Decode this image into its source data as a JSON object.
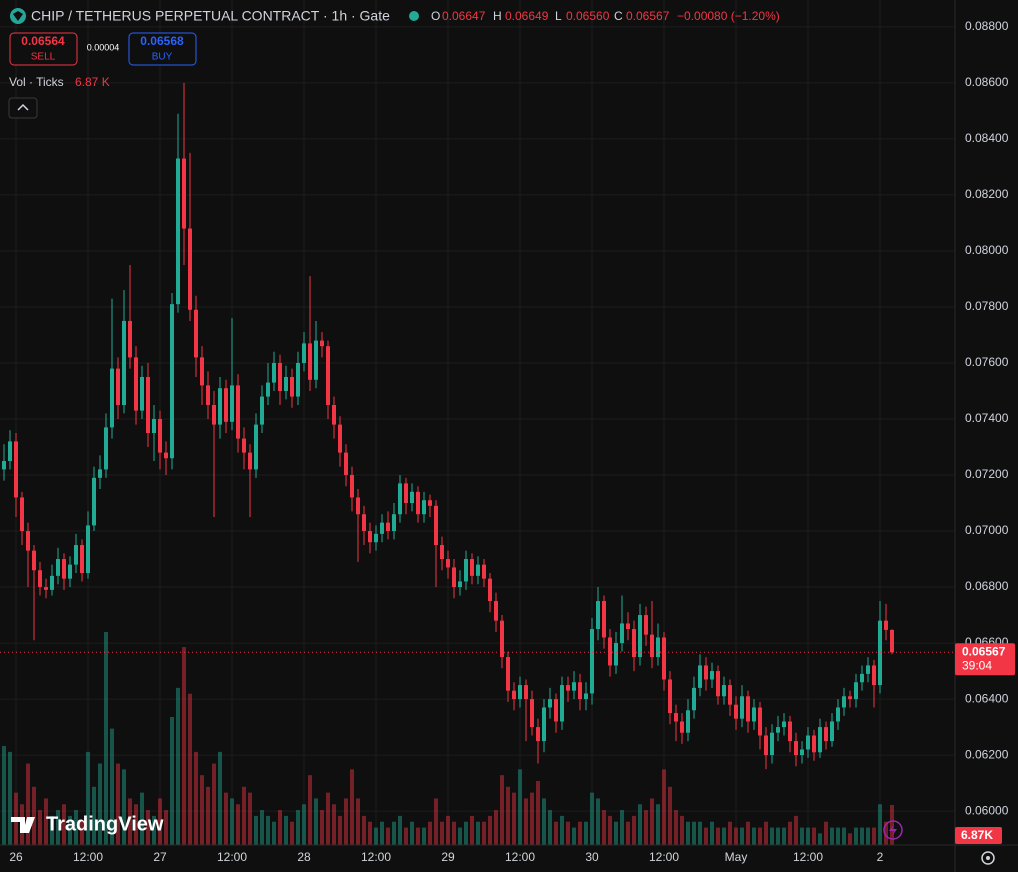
{
  "chart_data": {
    "type": "candlestick",
    "title": "CHIP / TETHERUS PERPETUAL CONTRACT · 1h · Gate",
    "legend": {
      "open_key": "O",
      "open": "0.06647",
      "high_key": "H",
      "high": "0.06649",
      "low_key": "L",
      "low": "0.06560",
      "close_key": "C",
      "close": "0.06567",
      "change": "−0.00080 (−1.20%)"
    },
    "trade": {
      "sell_price": "0.06564",
      "sell": "SELL",
      "spread": "0.00004",
      "buy_price": "0.06568",
      "buy": "BUY"
    },
    "last_price": {
      "value": 0.06567,
      "label": "0.06567",
      "countdown": "39:04"
    },
    "brand": "TradingView",
    "up_color": "#22ab94",
    "down_color": "#f23645",
    "grid": true,
    "categories": [
      null,
      null,
      "26",
      null,
      null,
      null,
      null,
      null,
      null,
      null,
      null,
      null,
      null,
      null,
      "12:00",
      null,
      null,
      null,
      null,
      null,
      null,
      null,
      null,
      null,
      null,
      null,
      "27",
      null,
      null,
      null,
      null,
      null,
      null,
      null,
      null,
      null,
      null,
      null,
      "12:00",
      null,
      null,
      null,
      null,
      null,
      null,
      null,
      null,
      null,
      null,
      null,
      "28",
      null,
      null,
      null,
      null,
      null,
      null,
      null,
      null,
      null,
      null,
      null,
      "12:00",
      null,
      null,
      null,
      null,
      null,
      null,
      null,
      null,
      null,
      null,
      null,
      "29",
      null,
      null,
      null,
      null,
      null,
      null,
      null,
      null,
      null,
      null,
      null,
      "12:00",
      null,
      null,
      null,
      null,
      null,
      null,
      null,
      null,
      null,
      null,
      null,
      "30",
      null,
      null,
      null,
      null,
      null,
      null,
      null,
      null,
      null,
      null,
      null,
      "12:00",
      null,
      null,
      null,
      null,
      null,
      null,
      null,
      null,
      null,
      null,
      null,
      "May",
      null,
      null,
      null,
      null,
      null,
      null,
      null,
      null,
      null,
      null,
      null,
      "12:00",
      null,
      null,
      null,
      null,
      null,
      null,
      null,
      null,
      null,
      null,
      null,
      "2",
      null,
      null
    ],
    "open": [
      0.0722,
      0.0725,
      0.0732,
      0.0712,
      0.07,
      0.0693,
      0.0686,
      0.068,
      0.0679,
      0.0684,
      0.069,
      0.0683,
      0.0688,
      0.0695,
      0.0685,
      0.0702,
      0.0719,
      0.0722,
      0.0737,
      0.0758,
      0.0745,
      0.0775,
      0.0762,
      0.0743,
      0.0755,
      0.0735,
      0.074,
      0.0728,
      0.0726,
      0.0781,
      0.0833,
      0.0808,
      0.0779,
      0.0762,
      0.0752,
      0.0745,
      0.0738,
      0.0751,
      0.0739,
      0.0752,
      0.0733,
      0.0728,
      0.0722,
      0.0738,
      0.0748,
      0.0753,
      0.076,
      0.075,
      0.0755,
      0.0748,
      0.076,
      0.0767,
      0.0754,
      0.0768,
      0.0766,
      0.0745,
      0.0738,
      0.0728,
      0.072,
      0.0712,
      0.0706,
      0.07,
      0.0696,
      0.0699,
      0.0703,
      0.07,
      0.0706,
      0.0717,
      0.071,
      0.0714,
      0.0706,
      0.0711,
      0.0709,
      0.0695,
      0.069,
      0.0687,
      0.068,
      0.0682,
      0.069,
      0.0684,
      0.0688,
      0.0683,
      0.0675,
      0.0668,
      0.0655,
      0.0643,
      0.064,
      0.0645,
      0.064,
      0.063,
      0.0625,
      0.0637,
      0.064,
      0.0632,
      0.0645,
      0.0643,
      0.0646,
      0.064,
      0.0642,
      0.0665,
      0.0675,
      0.0662,
      0.0652,
      0.066,
      0.0667,
      0.0665,
      0.0655,
      0.067,
      0.0663,
      0.0655,
      0.0662,
      0.0647,
      0.0635,
      0.0632,
      0.0628,
      0.0636,
      0.0644,
      0.0652,
      0.0647,
      0.065,
      0.0641,
      0.0645,
      0.0638,
      0.0633,
      0.0641,
      0.0632,
      0.0637,
      0.0627,
      0.062,
      0.0628,
      0.063,
      0.0632,
      0.0625,
      0.062,
      0.0622,
      0.0627,
      0.0621,
      0.063,
      0.0625,
      0.0632,
      0.0637,
      0.0641,
      0.064,
      0.0646,
      0.0649,
      0.0652,
      0.0645,
      0.0668,
      0.06647
    ],
    "high": [
      0.0731,
      0.0736,
      0.0735,
      0.0714,
      0.0703,
      0.0695,
      0.0689,
      0.0683,
      0.0688,
      0.0694,
      0.0692,
      0.0691,
      0.0699,
      0.0697,
      0.0707,
      0.0723,
      0.0727,
      0.0742,
      0.0783,
      0.0762,
      0.0786,
      0.0795,
      0.0766,
      0.0759,
      0.076,
      0.0745,
      0.0743,
      0.0732,
      0.0785,
      0.0849,
      0.086,
      0.0835,
      0.0784,
      0.0766,
      0.0757,
      0.075,
      0.0755,
      0.0754,
      0.0776,
      0.0756,
      0.0737,
      0.0731,
      0.0742,
      0.0752,
      0.076,
      0.0764,
      0.0763,
      0.0759,
      0.0758,
      0.0764,
      0.0771,
      0.0791,
      0.0775,
      0.0771,
      0.0768,
      0.0748,
      0.0741,
      0.0731,
      0.0723,
      0.0715,
      0.0709,
      0.0703,
      0.0702,
      0.0706,
      0.0707,
      0.071,
      0.072,
      0.0719,
      0.0717,
      0.0716,
      0.0714,
      0.0713,
      0.0711,
      0.0698,
      0.0693,
      0.069,
      0.0686,
      0.0693,
      0.0692,
      0.0691,
      0.069,
      0.0685,
      0.0678,
      0.067,
      0.0657,
      0.0646,
      0.0648,
      0.0647,
      0.0643,
      0.0633,
      0.064,
      0.0644,
      0.0642,
      0.0648,
      0.0648,
      0.065,
      0.0649,
      0.0646,
      0.0669,
      0.068,
      0.0677,
      0.0665,
      0.0664,
      0.0677,
      0.0671,
      0.0668,
      0.0674,
      0.0673,
      0.0675,
      0.0667,
      0.0664,
      0.065,
      0.0638,
      0.0635,
      0.064,
      0.0648,
      0.0656,
      0.0655,
      0.0653,
      0.0652,
      0.0648,
      0.0647,
      0.0641,
      0.0645,
      0.0643,
      0.064,
      0.0639,
      0.063,
      0.0631,
      0.0634,
      0.0635,
      0.0634,
      0.0628,
      0.0625,
      0.063,
      0.0629,
      0.0633,
      0.0632,
      0.0635,
      0.064,
      0.0644,
      0.0643,
      0.0649,
      0.0652,
      0.0655,
      0.0654,
      0.0675,
      0.0674,
      0.06649
    ],
    "low": [
      0.0718,
      0.0722,
      0.0705,
      0.0695,
      0.068,
      0.0661,
      0.0677,
      0.0676,
      0.0677,
      0.0681,
      0.0679,
      0.068,
      0.0685,
      0.0682,
      0.0683,
      0.07,
      0.0715,
      0.0719,
      0.0733,
      0.074,
      0.0742,
      0.0758,
      0.0738,
      0.074,
      0.073,
      0.0725,
      0.0722,
      0.072,
      0.0722,
      0.0778,
      0.0795,
      0.0775,
      0.0755,
      0.0745,
      0.074,
      0.0705,
      0.0733,
      0.0735,
      0.0736,
      0.0728,
      0.0722,
      0.0705,
      0.0719,
      0.0735,
      0.0745,
      0.075,
      0.0745,
      0.0747,
      0.0744,
      0.0745,
      0.0757,
      0.075,
      0.0751,
      0.0762,
      0.074,
      0.0733,
      0.0723,
      0.0716,
      0.0707,
      0.0689,
      0.0695,
      0.0692,
      0.0693,
      0.0696,
      0.0697,
      0.0697,
      0.0703,
      0.0706,
      0.0707,
      0.0703,
      0.0703,
      0.0705,
      0.068,
      0.0686,
      0.0683,
      0.0676,
      0.0677,
      0.0679,
      0.0681,
      0.0681,
      0.068,
      0.0671,
      0.0664,
      0.0651,
      0.0639,
      0.0636,
      0.0637,
      0.0625,
      0.0627,
      0.0617,
      0.0621,
      0.0633,
      0.0628,
      0.0629,
      0.0639,
      0.064,
      0.0636,
      0.0636,
      0.0638,
      0.0661,
      0.0658,
      0.0648,
      0.0649,
      0.0657,
      0.0661,
      0.065,
      0.0652,
      0.0659,
      0.0651,
      0.0652,
      0.0643,
      0.0631,
      0.0625,
      0.0624,
      0.0625,
      0.0633,
      0.0641,
      0.0643,
      0.0644,
      0.0638,
      0.0638,
      0.0634,
      0.0629,
      0.063,
      0.0628,
      0.0629,
      0.0622,
      0.0615,
      0.0617,
      0.0625,
      0.0627,
      0.0621,
      0.0616,
      0.0617,
      0.0619,
      0.0618,
      0.0619,
      0.0622,
      0.0623,
      0.0629,
      0.0634,
      0.0637,
      0.0637,
      0.0643,
      0.0646,
      0.0637,
      0.0642,
      0.0661,
      0.0656
    ],
    "close": [
      0.0725,
      0.0732,
      0.0712,
      0.07,
      0.0693,
      0.0686,
      0.068,
      0.0679,
      0.0684,
      0.069,
      0.0683,
      0.0688,
      0.0695,
      0.0685,
      0.0702,
      0.0719,
      0.0722,
      0.0737,
      0.0758,
      0.0745,
      0.0775,
      0.0762,
      0.0743,
      0.0755,
      0.0735,
      0.074,
      0.0728,
      0.0726,
      0.0781,
      0.0833,
      0.0808,
      0.0779,
      0.0762,
      0.0752,
      0.0745,
      0.0738,
      0.0751,
      0.0739,
      0.0752,
      0.0733,
      0.0728,
      0.0722,
      0.0738,
      0.0748,
      0.0753,
      0.076,
      0.075,
      0.0755,
      0.0748,
      0.076,
      0.0767,
      0.0754,
      0.0768,
      0.0766,
      0.0745,
      0.0738,
      0.0728,
      0.072,
      0.0712,
      0.0706,
      0.07,
      0.0696,
      0.0699,
      0.0703,
      0.07,
      0.0706,
      0.0717,
      0.071,
      0.0714,
      0.0706,
      0.0711,
      0.0709,
      0.0695,
      0.069,
      0.0687,
      0.068,
      0.0682,
      0.069,
      0.0684,
      0.0688,
      0.0683,
      0.0675,
      0.0668,
      0.0655,
      0.0643,
      0.064,
      0.0645,
      0.064,
      0.063,
      0.0625,
      0.0637,
      0.064,
      0.0632,
      0.0645,
      0.0643,
      0.0646,
      0.064,
      0.0642,
      0.0665,
      0.0675,
      0.0662,
      0.0652,
      0.066,
      0.0667,
      0.0665,
      0.0655,
      0.067,
      0.0663,
      0.0655,
      0.0662,
      0.0647,
      0.0635,
      0.0632,
      0.0628,
      0.0636,
      0.0644,
      0.0652,
      0.0647,
      0.065,
      0.0641,
      0.0645,
      0.0638,
      0.0633,
      0.0641,
      0.0632,
      0.0637,
      0.0627,
      0.062,
      0.0628,
      0.063,
      0.0632,
      0.0625,
      0.062,
      0.0622,
      0.0627,
      0.0621,
      0.063,
      0.0625,
      0.0632,
      0.0637,
      0.0641,
      0.064,
      0.0646,
      0.0649,
      0.0652,
      0.0645,
      0.0668,
      0.06647,
      0.06567
    ],
    "volume": {
      "name": "Vol · Ticks",
      "last_label": "6.87 K",
      "last_badge": "6.87K",
      "values": [
        17000,
        16000,
        9000,
        7000,
        14000,
        10000,
        6000,
        8000,
        5000,
        6000,
        7000,
        5000,
        6000,
        4000,
        16000,
        10000,
        14000,
        36600,
        20000,
        14000,
        13000,
        8000,
        7000,
        9000,
        6000,
        5000,
        8000,
        6000,
        22000,
        27000,
        34000,
        26000,
        16000,
        12000,
        10000,
        14000,
        16000,
        9000,
        8000,
        7000,
        10000,
        9000,
        5000,
        6000,
        5000,
        4000,
        6000,
        5000,
        4000,
        6000,
        7000,
        12000,
        8000,
        6000,
        9000,
        7000,
        5000,
        8000,
        13000,
        8000,
        5000,
        4000,
        3000,
        4000,
        3000,
        4000,
        5000,
        3000,
        4000,
        3000,
        3000,
        4000,
        8000,
        4000,
        5000,
        4000,
        3000,
        4000,
        5000,
        4000,
        4000,
        5000,
        6000,
        12000,
        10000,
        9000,
        13000,
        8000,
        9000,
        11000,
        8000,
        6000,
        4000,
        5000,
        4000,
        3000,
        4000,
        4000,
        9000,
        8000,
        6000,
        5000,
        4000,
        6000,
        4000,
        5000,
        7000,
        6000,
        8000,
        7000,
        13000,
        10000,
        6000,
        5000,
        4000,
        4000,
        4000,
        3000,
        4000,
        3000,
        3000,
        4000,
        3000,
        3000,
        4000,
        3000,
        3000,
        4000,
        3000,
        3000,
        3000,
        4000,
        5000,
        3000,
        3000,
        3000,
        2000,
        4000,
        3000,
        3000,
        3000,
        2000,
        3000,
        3000,
        3000,
        3000,
        7000,
        4000,
        6870
      ]
    },
    "ylim": [
      0.05879,
      0.08896
    ],
    "yticks": [
      {
        "value": 0.06,
        "label": "0.06000"
      },
      {
        "value": 0.062,
        "label": "0.06200"
      },
      {
        "value": 0.064,
        "label": "0.06400"
      },
      {
        "value": 0.066,
        "label": "0.06600"
      },
      {
        "value": 0.068,
        "label": "0.06800"
      },
      {
        "value": 0.07,
        "label": "0.07000"
      },
      {
        "value": 0.072,
        "label": "0.07200"
      },
      {
        "value": 0.074,
        "label": "0.07400"
      },
      {
        "value": 0.076,
        "label": "0.07600"
      },
      {
        "value": 0.078,
        "label": "0.07800"
      },
      {
        "value": 0.08,
        "label": "0.08000"
      },
      {
        "value": 0.082,
        "label": "0.08200"
      },
      {
        "value": 0.084,
        "label": "0.08400"
      },
      {
        "value": 0.086,
        "label": "0.08600"
      },
      {
        "value": 0.088,
        "label": "0.08800"
      }
    ]
  }
}
